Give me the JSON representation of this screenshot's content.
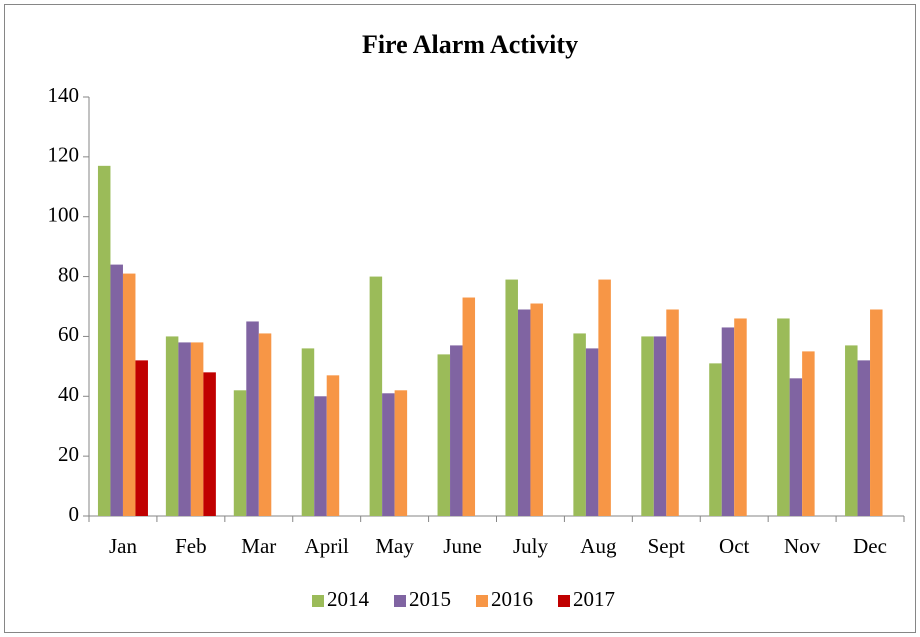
{
  "chart_data": {
    "type": "bar",
    "title": "Fire Alarm Activity",
    "categories": [
      "Jan",
      "Feb",
      "Mar",
      "April",
      "May",
      "June",
      "July",
      "Aug",
      "Sept",
      "Oct",
      "Nov",
      "Dec"
    ],
    "series": [
      {
        "name": "2014",
        "color": "#9bbb59",
        "values": [
          117,
          60,
          42,
          56,
          80,
          54,
          79,
          61,
          60,
          51,
          66,
          57
        ]
      },
      {
        "name": "2015",
        "color": "#8064a2",
        "values": [
          84,
          58,
          65,
          40,
          41,
          57,
          69,
          56,
          60,
          63,
          46,
          52
        ]
      },
      {
        "name": "2016",
        "color": "#f79646",
        "values": [
          81,
          58,
          61,
          47,
          42,
          73,
          71,
          79,
          69,
          66,
          55,
          69
        ]
      },
      {
        "name": "2017",
        "color": "#c00000",
        "values": [
          52,
          48,
          null,
          null,
          null,
          null,
          null,
          null,
          null,
          null,
          null,
          null
        ]
      }
    ],
    "ylim": [
      0,
      140
    ],
    "yticks": [
      0,
      20,
      40,
      60,
      80,
      100,
      120,
      140
    ],
    "grid": false,
    "legend": "bottom"
  }
}
